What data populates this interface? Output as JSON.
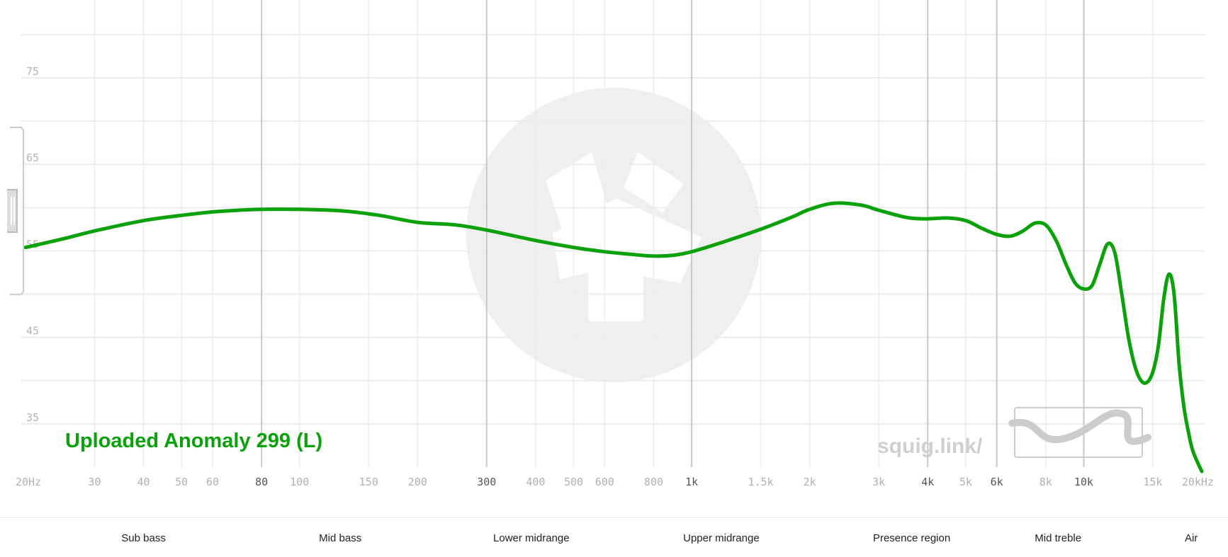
{
  "colors": {
    "trace": "#0aa10a",
    "grid_minor": "#ececec",
    "grid_major": "#c8c8c8",
    "watermark": "#efefef"
  },
  "watermark": {
    "text": "squig.link/"
  },
  "chart_data": {
    "type": "line",
    "title": "",
    "xscale": "log",
    "xlim": [
      20,
      20000
    ],
    "ylim": [
      30,
      84
    ],
    "grid": true,
    "legend_placement": "bottom-left",
    "y_ticks": [
      {
        "value": 35,
        "label": "35"
      },
      {
        "value": 45,
        "label": "45"
      },
      {
        "value": 55,
        "label": "55"
      },
      {
        "value": 65,
        "label": "65"
      },
      {
        "value": 75,
        "label": "75"
      }
    ],
    "x_ticks": [
      {
        "value": 20,
        "label": "20Hz",
        "major": false
      },
      {
        "value": 30,
        "label": "30",
        "major": false
      },
      {
        "value": 40,
        "label": "40",
        "major": false
      },
      {
        "value": 50,
        "label": "50",
        "major": false
      },
      {
        "value": 60,
        "label": "60",
        "major": false
      },
      {
        "value": 80,
        "label": "80",
        "major": true
      },
      {
        "value": 100,
        "label": "100",
        "major": false
      },
      {
        "value": 150,
        "label": "150",
        "major": false
      },
      {
        "value": 200,
        "label": "200",
        "major": false
      },
      {
        "value": 300,
        "label": "300",
        "major": true
      },
      {
        "value": 400,
        "label": "400",
        "major": false
      },
      {
        "value": 500,
        "label": "500",
        "major": false
      },
      {
        "value": 600,
        "label": "600",
        "major": false
      },
      {
        "value": 800,
        "label": "800",
        "major": false
      },
      {
        "value": 1000,
        "label": "1k",
        "major": true
      },
      {
        "value": 1500,
        "label": "1.5k",
        "major": false
      },
      {
        "value": 2000,
        "label": "2k",
        "major": false
      },
      {
        "value": 3000,
        "label": "3k",
        "major": false
      },
      {
        "value": 4000,
        "label": "4k",
        "major": true
      },
      {
        "value": 5000,
        "label": "5k",
        "major": false
      },
      {
        "value": 6000,
        "label": "6k",
        "major": true
      },
      {
        "value": 8000,
        "label": "8k",
        "major": false
      },
      {
        "value": 10000,
        "label": "10k",
        "major": true
      },
      {
        "value": 15000,
        "label": "15k",
        "major": false
      },
      {
        "value": 20000,
        "label": "20kHz",
        "major": false
      }
    ],
    "bands": [
      {
        "label": "Sub bass",
        "center": 40
      },
      {
        "label": "Mid bass",
        "center": 127
      },
      {
        "label": "Lower midrange",
        "center": 390
      },
      {
        "label": "Upper midrange",
        "center": 1190
      },
      {
        "label": "Presence region",
        "center": 3640
      },
      {
        "label": "Mid treble",
        "center": 8600
      },
      {
        "label": "Air",
        "center": 18800
      }
    ],
    "series": [
      {
        "name": "Uploaded Anomaly 299 (L)",
        "x": [
          20,
          25,
          30,
          40,
          50,
          60,
          70,
          80,
          100,
          130,
          160,
          200,
          250,
          300,
          400,
          500,
          600,
          700,
          800,
          900,
          1000,
          1200,
          1500,
          1800,
          2000,
          2300,
          2700,
          3000,
          3500,
          3900,
          4500,
          5000,
          5500,
          6000,
          6500,
          7000,
          7500,
          8000,
          8500,
          9000,
          9500,
          10000,
          10500,
          11000,
          11500,
          12000,
          12500,
          13000,
          13500,
          14000,
          14500,
          15000,
          15500,
          16000,
          16500,
          17000,
          17500,
          18000,
          18500,
          19000,
          20000
        ],
        "y": [
          55.4,
          56.4,
          57.3,
          58.5,
          59.1,
          59.5,
          59.7,
          59.8,
          59.8,
          59.6,
          59.1,
          58.3,
          58.0,
          57.4,
          56.2,
          55.4,
          54.9,
          54.6,
          54.4,
          54.5,
          54.9,
          56.0,
          57.5,
          58.9,
          59.8,
          60.5,
          60.3,
          59.7,
          58.9,
          58.7,
          58.8,
          58.5,
          57.6,
          56.9,
          56.7,
          57.3,
          58.2,
          58.0,
          56.2,
          53.5,
          51.3,
          50.6,
          51.0,
          53.5,
          55.8,
          54.8,
          50.0,
          45.0,
          41.7,
          40.0,
          39.8,
          41.0,
          44.0,
          49.5,
          52.3,
          50.0,
          42.0,
          37.0,
          34.0,
          31.8,
          29.5
        ]
      }
    ]
  }
}
